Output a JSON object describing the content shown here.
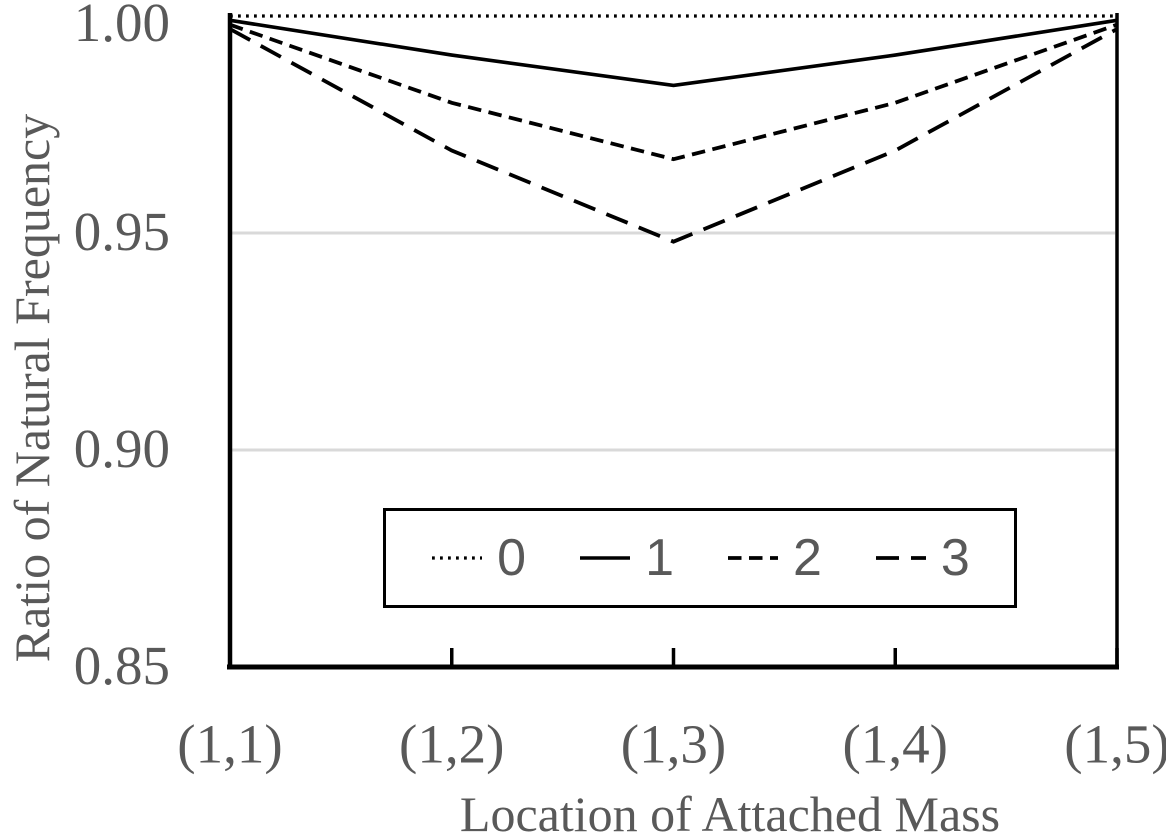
{
  "figure": {
    "background": "#ffffff"
  },
  "colors": {
    "text": "#595959",
    "gridline": "#d9d9d9",
    "axis": "#000000",
    "line": "#000000",
    "legend_border": "#000000",
    "legend_background": "#ffffff"
  },
  "chart_data": {
    "type": "line",
    "title": "",
    "xlabel": "Location of Attached Mass",
    "ylabel": "Ratio of Natural Frequency",
    "categories": [
      "(1,1)",
      "(1,2)",
      "(1,3)",
      "(1,4)",
      "(1,5)"
    ],
    "y_tick_labels": [
      "1.00",
      "0.95",
      "0.90",
      "0.85"
    ],
    "ylim": [
      0.85,
      1.0
    ],
    "gridline_values": [
      0.95,
      0.9
    ],
    "grid": "horizontal-only",
    "legend_position": "inside-bottom-center-boxed",
    "series": [
      {
        "name": "0",
        "linestyle": "dotted",
        "color": "#000000",
        "values": [
          1.0,
          1.0,
          1.0,
          1.0,
          1.0
        ]
      },
      {
        "name": "1",
        "linestyle": "solid",
        "color": "#000000",
        "values": [
          0.999,
          0.991,
          0.984,
          0.991,
          0.999
        ]
      },
      {
        "name": "2",
        "linestyle": "short-dash",
        "color": "#000000",
        "values": [
          0.998,
          0.98,
          0.967,
          0.98,
          0.998
        ]
      },
      {
        "name": "3",
        "linestyle": "long-dash",
        "color": "#000000",
        "values": [
          0.997,
          0.969,
          0.948,
          0.969,
          0.997
        ]
      }
    ]
  }
}
